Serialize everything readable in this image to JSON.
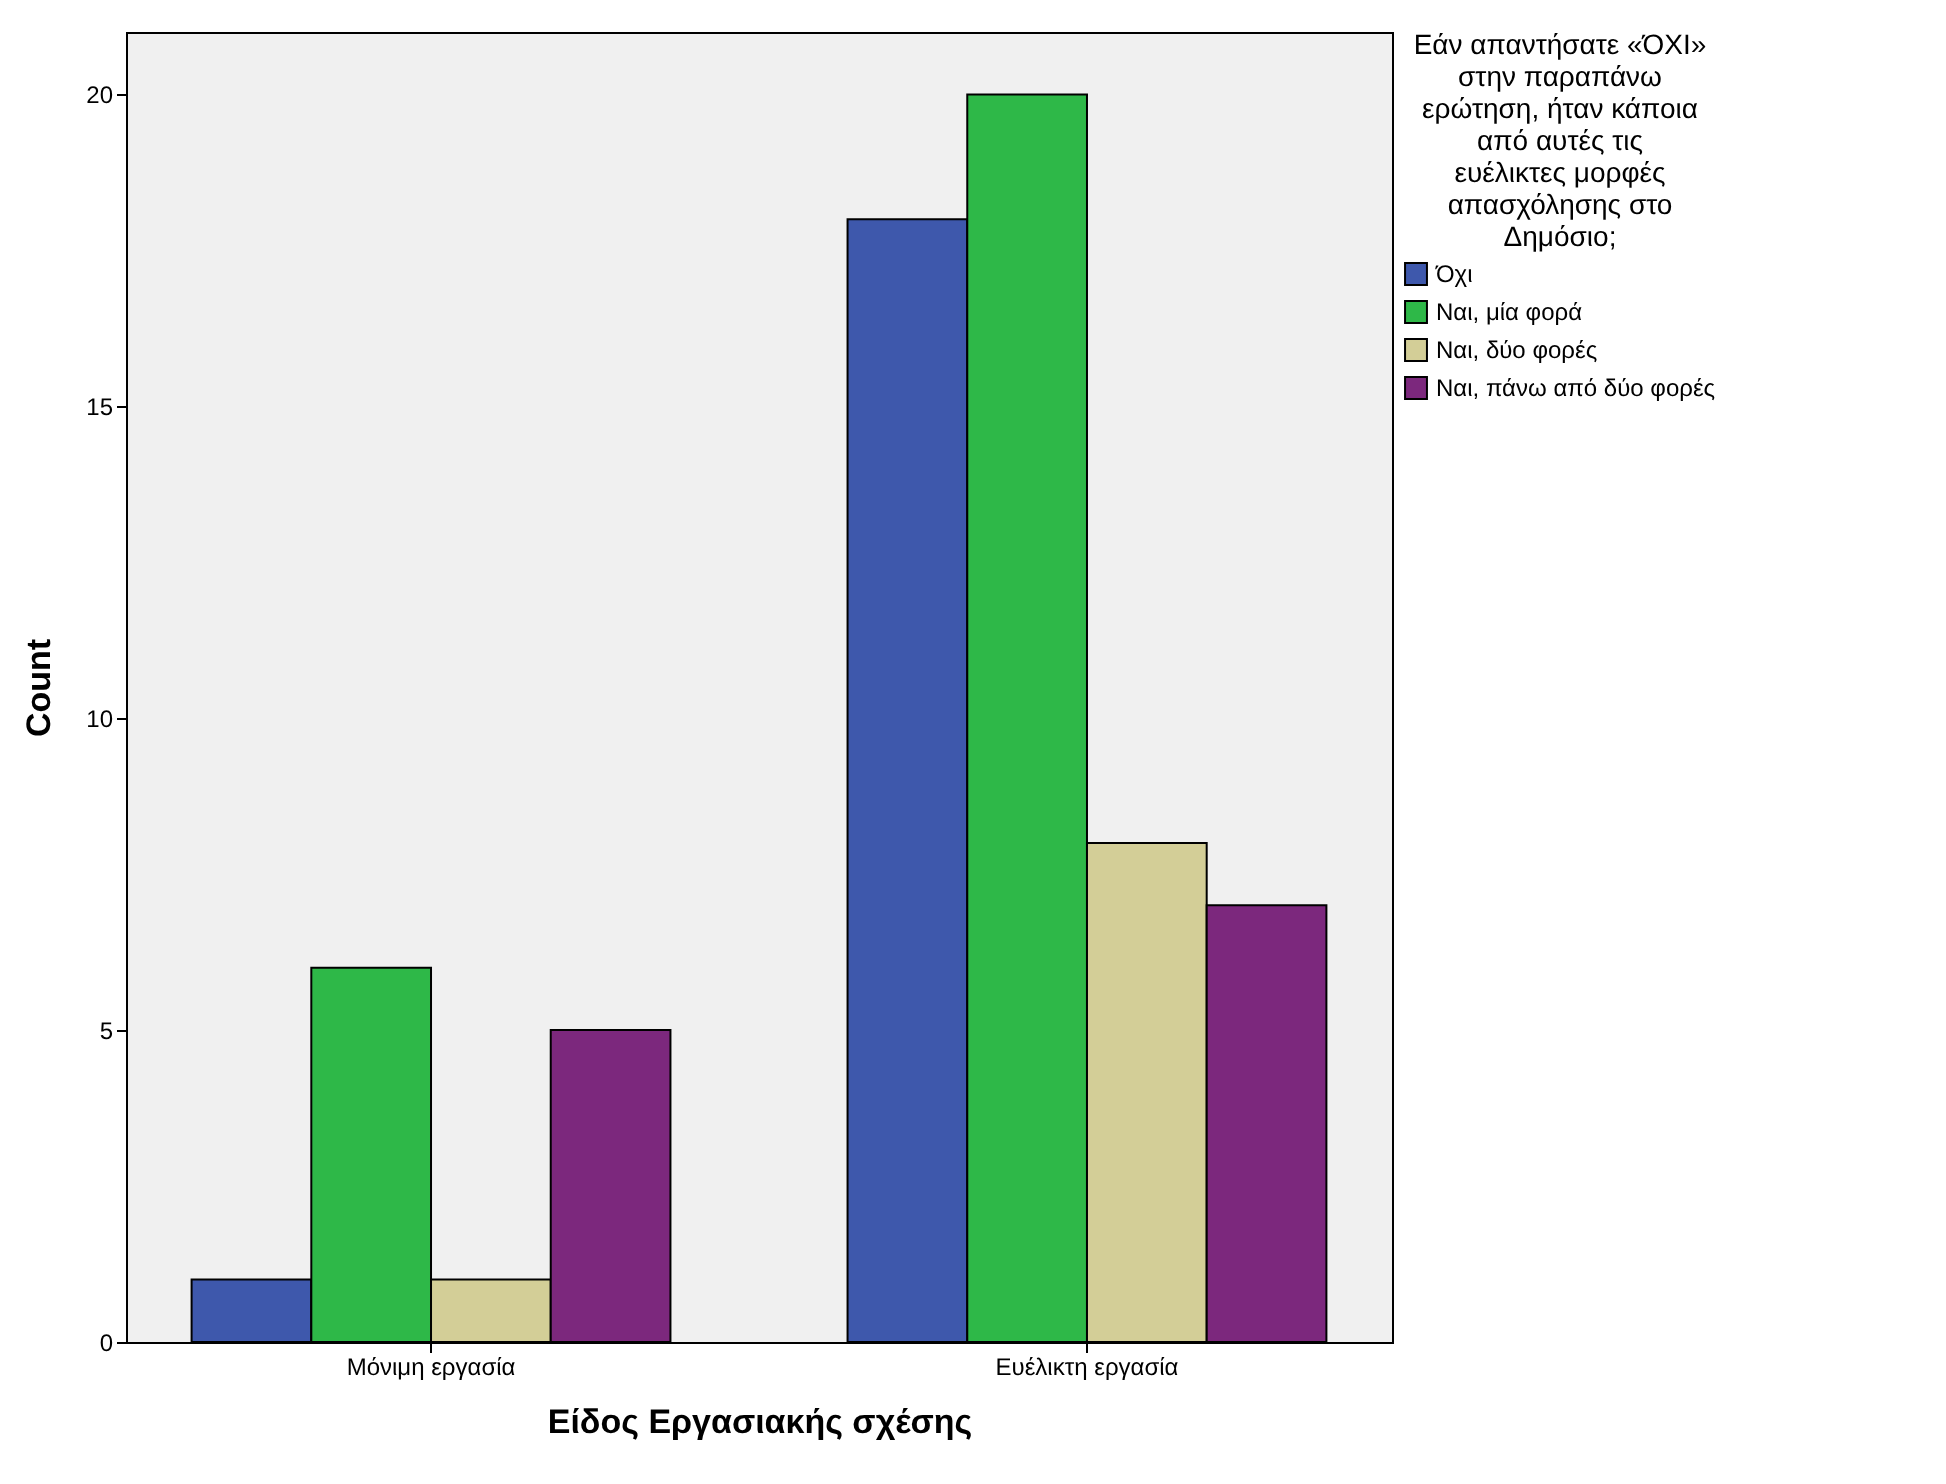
{
  "chart_data": {
    "type": "bar",
    "xlabel": "Είδος Εργασιακής σχέσης",
    "ylabel": "Count",
    "legend_title": "Εάν απαντήσατε «ΌΧΙ» στην παραπάνω ερώτηση, ήταν κάποια από αυτές τις ευέλικτες μορφές απασχόλησης στο Δημόσιο;",
    "categories": [
      "Μόνιμη εργασία",
      "Ευέλικτη εργασία"
    ],
    "series": [
      {
        "name": "Όχι",
        "color": "#3e58ac",
        "values": [
          1,
          18
        ]
      },
      {
        "name": "Ναι, μία φορά",
        "color": "#2eb848",
        "values": [
          6,
          20
        ]
      },
      {
        "name": "Ναι, δύο φορές",
        "color": "#d3ce97",
        "values": [
          1,
          8
        ]
      },
      {
        "name": "Ναι, πάνω από δύο φορές",
        "color": "#7c287d",
        "values": [
          5,
          7
        ]
      }
    ],
    "ylim": [
      0,
      21
    ],
    "yticks": [
      0,
      5,
      10,
      15,
      20
    ],
    "grid": false,
    "legend": "top right"
  }
}
